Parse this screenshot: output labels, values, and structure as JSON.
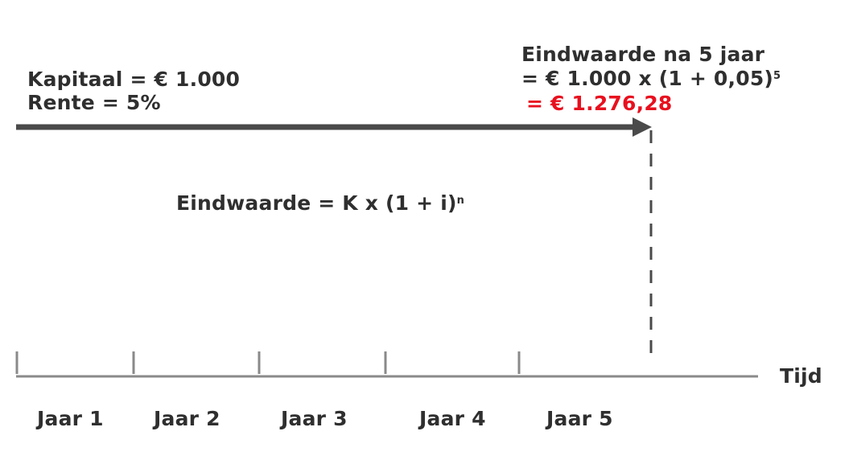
{
  "given": {
    "kapitaal": "Kapitaal = € 1.000",
    "rente": "Rente = 5%"
  },
  "result": {
    "heading": "Eindwaarde na 5 jaar",
    "calc_base": "= € 1.000 x (1 + 0,05)",
    "calc_exponent": "5",
    "answer": "= € 1.276,28",
    "answer_color": "#e8101e"
  },
  "formula": {
    "base": "Eindwaarde = K x (1 + i)",
    "exponent": "n"
  },
  "timeline": {
    "axis_label": "Tijd",
    "years": [
      "Jaar 1",
      "Jaar 2",
      "Jaar 3",
      "Jaar 4",
      "Jaar 5"
    ]
  },
  "colors": {
    "text": "#2f2f2f",
    "arrow": "#4a4a4a",
    "axis": "#8a8a8a",
    "highlight": "#e8101e"
  }
}
